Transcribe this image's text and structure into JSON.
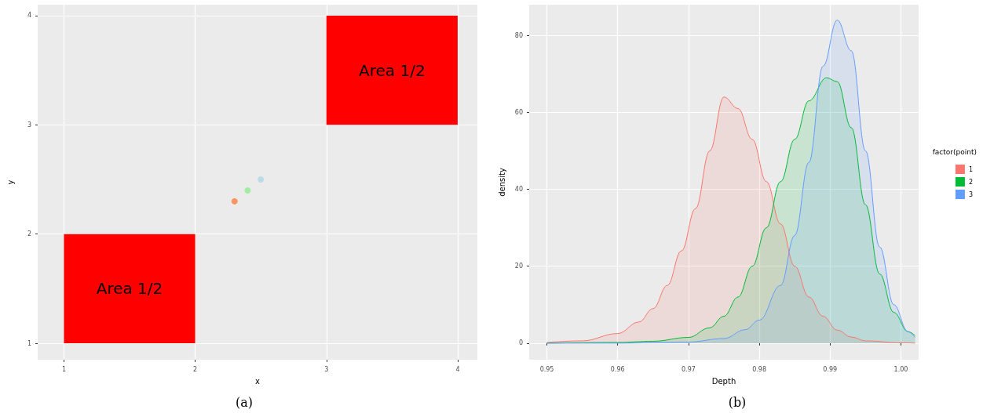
{
  "chart_data": [
    {
      "type": "scatter",
      "xlabel": "x",
      "ylabel": "y",
      "annotations": [
        "(a)"
      ],
      "xlim": [
        0.8,
        4.15
      ],
      "ylim": [
        0.85,
        4.1
      ],
      "xticks": [
        1,
        2,
        3,
        4
      ],
      "yticks": [
        1,
        2,
        3,
        4
      ],
      "grid": true,
      "marker": "circle",
      "series": [
        {
          "type": "bar",
          "x": [
            1.5,
            3.5
          ],
          "base": [
            1,
            3
          ],
          "values": [
            1,
            1
          ],
          "color": "#ff0000",
          "value_labels": [
            "Area 1/2",
            "Area 1/2"
          ]
        },
        {
          "type": "scatter",
          "x": [
            2.3,
            2.4,
            2.5
          ],
          "values": [
            2.3,
            2.4,
            2.5
          ],
          "colors": [
            "#ff7f3f",
            "#90ee90",
            "#add8e6"
          ]
        }
      ]
    },
    {
      "type": "area",
      "xlabel": "Depth",
      "ylabel": "density",
      "legend_title": "factor(point)",
      "annotations": [
        "(b)"
      ],
      "xlim": [
        0.9475,
        1.0025
      ],
      "ylim": [
        -4.3,
        88
      ],
      "xticks": [
        0.95,
        0.96,
        0.97,
        0.98,
        0.99,
        {
          "value": 1,
          "label": "1.00"
        }
      ],
      "yticks": [
        0,
        20,
        40,
        60,
        80
      ],
      "grid": true,
      "legend": "right",
      "marker": "none",
      "series": [
        {
          "name": "1",
          "color": "#f8766d",
          "x": [
            0.95,
            0.955,
            0.96,
            0.963,
            0.965,
            0.967,
            0.969,
            0.971,
            0.973,
            0.975,
            0.977,
            0.979,
            0.981,
            0.983,
            0.985,
            0.987,
            0.989,
            0.991,
            0.993,
            0.995,
            1.0,
            1.002
          ],
          "values": [
            0.2,
            0.6,
            2.5,
            5.5,
            9,
            15,
            24,
            35,
            50,
            64,
            61,
            53,
            42,
            31,
            20,
            12,
            7,
            3.4,
            1.6,
            0.6,
            0.1,
            0
          ]
        },
        {
          "name": "2",
          "color": "#00ba38",
          "x": [
            0.95,
            0.96,
            0.965,
            0.97,
            0.973,
            0.975,
            0.977,
            0.979,
            0.981,
            0.983,
            0.985,
            0.987,
            0.9895,
            0.991,
            0.993,
            0.995,
            0.997,
            0.999,
            1.001,
            1.002
          ],
          "values": [
            0,
            0.2,
            0.5,
            1.5,
            4,
            7,
            12,
            20,
            30,
            42,
            53,
            63,
            69,
            68,
            56,
            36,
            18,
            8,
            3,
            2
          ]
        },
        {
          "name": "3",
          "color": "#619cff",
          "x": [
            0.95,
            0.96,
            0.97,
            0.975,
            0.978,
            0.98,
            0.983,
            0.985,
            0.987,
            0.989,
            0.991,
            0.993,
            0.995,
            0.997,
            0.999,
            1.001,
            1.002
          ],
          "values": [
            0,
            0,
            0.3,
            1.2,
            3.5,
            6,
            15,
            28,
            47,
            72,
            84,
            76,
            50,
            25,
            10,
            3,
            1.5
          ]
        }
      ]
    }
  ]
}
